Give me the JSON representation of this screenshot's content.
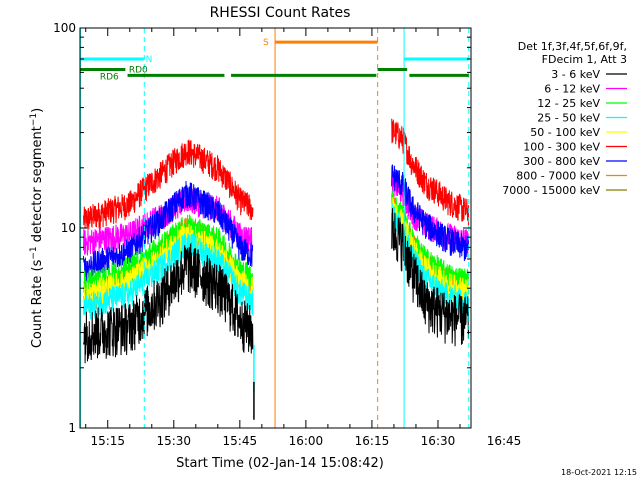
{
  "chart_data": {
    "type": "line",
    "title": "RHESSI Count Rates",
    "xlabel": "Start Time (02-Jan-14 15:08:42)",
    "ylabel": "Count Rate (s⁻¹ detector segment⁻¹)",
    "ylabel_main": "Count Rate (s",
    "ylabel_sup1": "−1",
    "ylabel_mid": " detector segment",
    "ylabel_sup2": "−1",
    "ylabel_end": ")",
    "yscale": "log",
    "ylim": [
      1,
      100
    ],
    "y_ticks": [
      {
        "value": 1,
        "label": "1"
      },
      {
        "value": 10,
        "label": "10"
      },
      {
        "value": 100,
        "label": "100"
      }
    ],
    "xlim_min": [
      8.7,
      97.5
    ],
    "x_ticks": [
      {
        "min": 15,
        "label": "15:15"
      },
      {
        "min": 30,
        "label": "15:30"
      },
      {
        "min": 45,
        "label": "15:45"
      },
      {
        "min": 60,
        "label": "16:00"
      },
      {
        "min": 75,
        "label": "16:15"
      },
      {
        "min": 90,
        "label": "16:30"
      },
      {
        "min": 105,
        "label": "16:45"
      }
    ],
    "legend_header": [
      "Det 1f,3f,4f,5f,6f,9f,",
      "FDecim 1, Att 3"
    ],
    "series": [
      {
        "name": "3 - 6 keV",
        "color": "#000000",
        "seg1": [
          [
            9.5,
            3.0
          ],
          [
            20,
            3.3
          ],
          [
            27,
            4.5
          ],
          [
            33,
            6.6
          ],
          [
            40,
            5.2
          ],
          [
            45,
            3.5
          ],
          [
            48,
            3.1
          ]
        ],
        "seg2": [
          [
            79.5,
            10.0
          ],
          [
            82,
            8.5
          ],
          [
            84,
            6.2
          ],
          [
            87,
            4.3
          ],
          [
            92,
            3.7
          ],
          [
            97,
            3.5
          ]
        ]
      },
      {
        "name": "6 - 12 keV",
        "color": "#ff00ff",
        "seg1": [
          [
            9.5,
            8.5
          ],
          [
            20,
            9.3
          ],
          [
            27,
            11.5
          ],
          [
            33,
            14.0
          ],
          [
            40,
            12.5
          ],
          [
            45,
            9.2
          ],
          [
            48,
            8.8
          ]
        ],
        "seg2": [
          [
            79.5,
            17.5
          ],
          [
            82,
            15.0
          ],
          [
            84,
            12.0
          ],
          [
            87,
            10.5
          ],
          [
            92,
            9.2
          ],
          [
            97,
            8.6
          ]
        ]
      },
      {
        "name": "12 - 25 keV",
        "color": "#00ff00",
        "seg1": [
          [
            9.5,
            5.3
          ],
          [
            20,
            6.2
          ],
          [
            27,
            8.0
          ],
          [
            33,
            10.2
          ],
          [
            40,
            8.7
          ],
          [
            45,
            6.2
          ],
          [
            48,
            5.6
          ]
        ],
        "seg2": [
          [
            79.5,
            13.5
          ],
          [
            82,
            11.5
          ],
          [
            84,
            8.8
          ],
          [
            87,
            7.0
          ],
          [
            92,
            5.8
          ],
          [
            97,
            5.4
          ]
        ]
      },
      {
        "name": "25 - 50 keV",
        "color": "#00ffff",
        "seg1": [
          [
            9.5,
            4.0
          ],
          [
            20,
            4.7
          ],
          [
            27,
            6.3
          ],
          [
            33,
            8.4
          ],
          [
            40,
            6.9
          ],
          [
            45,
            4.8
          ],
          [
            48,
            4.3
          ]
        ],
        "seg2": [
          [
            79.5,
            11.5
          ],
          [
            82,
            9.8
          ],
          [
            84,
            7.3
          ],
          [
            87,
            5.6
          ],
          [
            92,
            4.6
          ],
          [
            97,
            4.2
          ]
        ]
      },
      {
        "name": "50 - 100 keV",
        "color": "#ffff00",
        "seg1": [
          [
            9.5,
            4.6
          ],
          [
            20,
            5.4
          ],
          [
            27,
            7.1
          ],
          [
            33,
            9.3
          ],
          [
            40,
            7.7
          ],
          [
            45,
            5.4
          ],
          [
            48,
            4.9
          ]
        ],
        "seg2": [
          [
            79.5,
            12.5
          ],
          [
            82,
            10.5
          ],
          [
            84,
            8.0
          ],
          [
            87,
            6.3
          ],
          [
            92,
            5.2
          ],
          [
            97,
            4.8
          ]
        ]
      },
      {
        "name": "100 - 300 keV",
        "color": "#ff0000",
        "seg1": [
          [
            9.5,
            11.0
          ],
          [
            20,
            13.2
          ],
          [
            27,
            18.5
          ],
          [
            33,
            24.5
          ],
          [
            40,
            20.0
          ],
          [
            45,
            13.8
          ],
          [
            48,
            12.5
          ]
        ],
        "seg2": [
          [
            79.5,
            31.0
          ],
          [
            82,
            28.0
          ],
          [
            84,
            21.5
          ],
          [
            87,
            17.0
          ],
          [
            92,
            13.8
          ],
          [
            97,
            12.0
          ]
        ]
      },
      {
        "name": "300 - 800 keV",
        "color": "#0000ff",
        "seg1": [
          [
            9.5,
            6.3
          ],
          [
            20,
            7.7
          ],
          [
            27,
            11.0
          ],
          [
            33,
            15.0
          ],
          [
            40,
            12.0
          ],
          [
            45,
            8.0
          ],
          [
            48,
            7.3
          ]
        ],
        "seg2": [
          [
            79.5,
            18.5
          ],
          [
            82,
            16.5
          ],
          [
            84,
            12.8
          ],
          [
            87,
            10.5
          ],
          [
            92,
            8.8
          ],
          [
            97,
            7.8
          ]
        ]
      },
      {
        "name": "800 - 7000 keV",
        "color": "#ff8000",
        "seg1": [
          [
            9.5,
            4.3
          ],
          [
            20,
            5.6
          ],
          [
            27,
            7.5
          ],
          [
            33,
            10.0
          ],
          [
            40,
            8.2
          ],
          [
            45,
            5.4
          ],
          [
            48,
            5.0
          ]
        ],
        "seg2": [
          [
            79.5,
            13.0
          ],
          [
            82,
            11.0
          ],
          [
            84,
            8.4
          ],
          [
            87,
            6.6
          ],
          [
            92,
            5.5
          ],
          [
            97,
            5.0
          ]
        ]
      },
      {
        "name": "7000 - 15000 keV",
        "color": "#808000",
        "seg1": [],
        "seg2": []
      }
    ],
    "vlines": [
      {
        "min": 8.8,
        "color": "#00ffff",
        "dash": false
      },
      {
        "min": 23.3,
        "color": "#00ffff",
        "dash": true
      },
      {
        "min": 53.0,
        "color": "#ff8000",
        "dash": false
      },
      {
        "min": 76.3,
        "color": "#ff8000",
        "dash": true
      },
      {
        "min": 82.3,
        "color": "#00ffff",
        "dash": false
      },
      {
        "min": 97.0,
        "color": "#00ffff",
        "dash": true
      }
    ],
    "spike": [
      {
        "min": 48.2,
        "y0": 1.5,
        "y1": 2.6,
        "color": "#00ffff"
      },
      {
        "min": 48.2,
        "y0": 1.1,
        "y1": 1.7,
        "color": "#000000"
      }
    ],
    "flag_bars": [
      {
        "label": "N",
        "color": "#00ffff",
        "y": 70,
        "segments": [
          [
            8.8,
            23.2
          ],
          [
            82.3,
            97.0
          ]
        ]
      },
      {
        "label": "S",
        "color": "#ff8000",
        "y": 85,
        "segments": [
          [
            53.0,
            76.3
          ]
        ]
      },
      {
        "label": "RD0",
        "color": "#008000",
        "y": 62,
        "segments": [
          [
            8.8,
            19.0
          ],
          [
            76.3,
            83.0
          ]
        ]
      },
      {
        "label": "RD6",
        "color": "#008000",
        "y": 58,
        "segments": [
          [
            19.5,
            41.5
          ],
          [
            43.0,
            76.0
          ],
          [
            83.5,
            97.0
          ]
        ]
      }
    ]
  },
  "timestamp": "18-Oct-2021 12:15"
}
